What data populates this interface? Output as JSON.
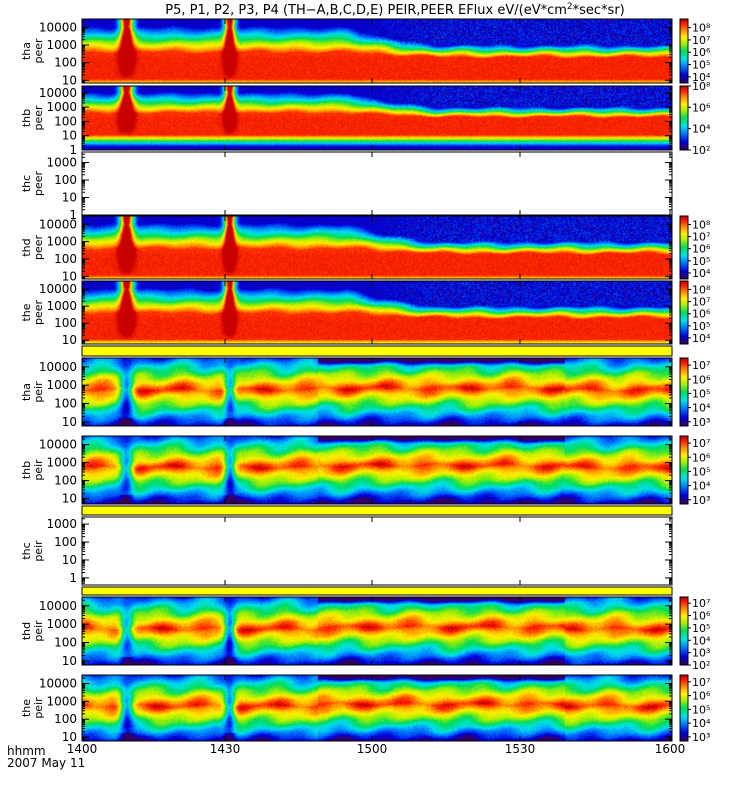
{
  "chart_data": {
    "type": "heatmap",
    "title": "P5, P1, P2, P3, P4 (TH−A,B,C,D,E) PEIR,PEER EFlux eV/(eV*cm²*sec*sr)",
    "title_parts": {
      "prefix": "P5, P1, P2, P3, P4 (TH−A,B,C,D,E) PEIR,PEER EFlux eV/(eV*cm",
      "superscript": "2",
      "suffix": "*sec*sr)"
    },
    "date_label": "2007 May 11",
    "time_format_label": "hhmm",
    "x_ticks": [
      "1400",
      "1430",
      "1500",
      "1530",
      "1600"
    ],
    "xlim": [
      "14:00",
      "16:00"
    ],
    "colormap": "rainbow",
    "panels": [
      {
        "probe": "tha",
        "species": "peer",
        "has_data": true,
        "yticks": [
          "10",
          "100",
          "1000",
          "10000"
        ],
        "ylim": [
          7,
          30000
        ],
        "zticks": [
          "10⁴",
          "10⁵",
          "10⁶",
          "10⁷",
          "10⁸"
        ],
        "zlim_exp": [
          3.5,
          8.7
        ]
      },
      {
        "probe": "thb",
        "species": "peer",
        "has_data": true,
        "yticks": [
          "1",
          "10",
          "100",
          "1000",
          "10000"
        ],
        "ylim": [
          1,
          30000
        ],
        "zticks": [
          "10²",
          "10⁴",
          "10⁶",
          "10⁸"
        ],
        "zlim_exp": [
          1.0,
          9.0
        ]
      },
      {
        "probe": "thc",
        "species": "peer",
        "has_data": false,
        "yticks": [
          "1",
          "10",
          "100",
          "1000"
        ],
        "ylim": [
          1,
          4000
        ]
      },
      {
        "probe": "thd",
        "species": "peer",
        "has_data": true,
        "yticks": [
          "10",
          "100",
          "1000",
          "10000"
        ],
        "ylim": [
          7,
          30000
        ],
        "zticks": [
          "10⁴",
          "10⁵",
          "10⁶",
          "10⁷",
          "10⁸"
        ],
        "zlim_exp": [
          3.5,
          8.7
        ]
      },
      {
        "probe": "the",
        "species": "peer",
        "has_data": true,
        "yticks": [
          "10",
          "100",
          "1000",
          "10000"
        ],
        "ylim": [
          6,
          30000
        ],
        "zticks": [
          "10⁴",
          "10⁵",
          "10⁶",
          "10⁷",
          "10⁸"
        ],
        "zlim_exp": [
          3.5,
          8.7
        ]
      },
      {
        "probe": "tha",
        "species": "peir",
        "has_data": true,
        "yticks": [
          "10",
          "100",
          "1000",
          "10000"
        ],
        "ylim": [
          6,
          30000
        ],
        "zticks": [
          "10³",
          "10⁴",
          "10⁵",
          "10⁶",
          "10⁷"
        ],
        "zlim_exp": [
          2.7,
          7.5
        ]
      },
      {
        "probe": "thb",
        "species": "peir",
        "has_data": true,
        "yticks": [
          "10",
          "100",
          "1000",
          "10000"
        ],
        "ylim": [
          5,
          30000
        ],
        "zticks": [
          "10³",
          "10⁴",
          "10⁵",
          "10⁶",
          "10⁷"
        ],
        "zlim_exp": [
          2.7,
          7.5
        ]
      },
      {
        "probe": "thc",
        "species": "peir",
        "has_data": false,
        "yticks": [
          "1",
          "10",
          "100",
          "1000"
        ],
        "ylim": [
          0.4,
          2500
        ]
      },
      {
        "probe": "thd",
        "species": "peir",
        "has_data": true,
        "yticks": [
          "10",
          "100",
          "1000",
          "10000"
        ],
        "ylim": [
          6,
          30000
        ],
        "zticks": [
          "10²",
          "10³",
          "10⁴",
          "10⁵",
          "10⁶",
          "10⁷"
        ],
        "zlim_exp": [
          2.0,
          7.5
        ]
      },
      {
        "probe": "the",
        "species": "peir",
        "has_data": true,
        "yticks": [
          "10",
          "100",
          "1000",
          "10000"
        ],
        "ylim": [
          6,
          30000
        ],
        "zticks": [
          "10³",
          "10⁴",
          "10⁵",
          "10⁶",
          "10⁷"
        ],
        "zlim_exp": [
          2.7,
          7.5
        ]
      }
    ],
    "events": [
      {
        "name": "burst-1",
        "center_hhmm": "14:09",
        "width_min": 2.5
      },
      {
        "name": "burst-2",
        "center_hhmm": "14:30",
        "width_min": 2.0
      }
    ]
  }
}
